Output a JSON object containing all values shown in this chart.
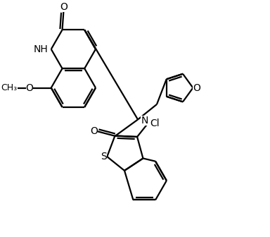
{
  "bg": "#ffffff",
  "lc": "#000000",
  "lw": 1.6,
  "figsize": [
    3.84,
    3.36
  ],
  "dpi": 100,
  "xlim": [
    0,
    10
  ],
  "ylim": [
    0,
    8.8
  ]
}
